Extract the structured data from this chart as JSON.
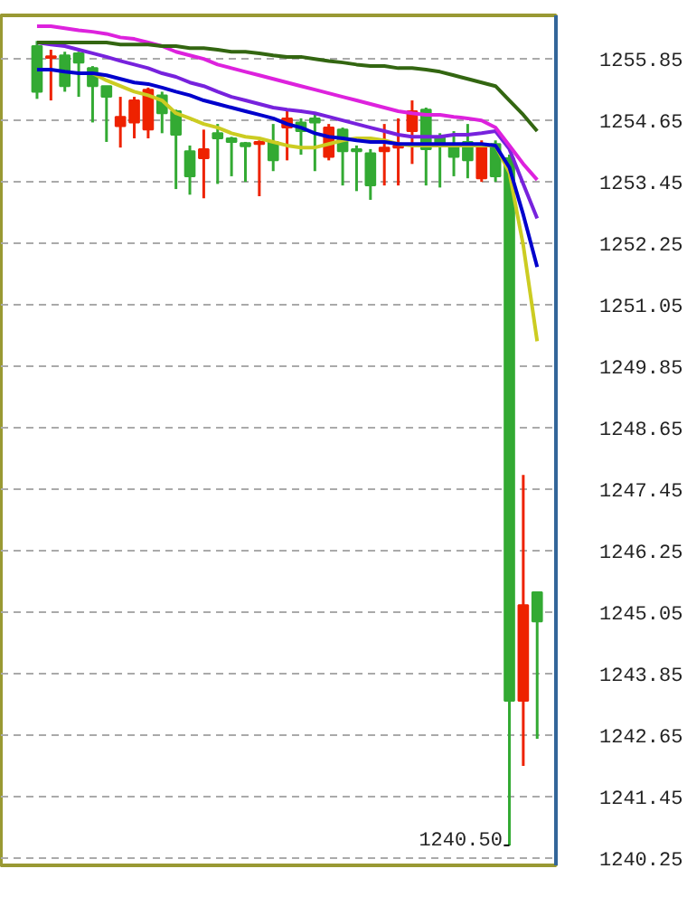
{
  "chart_data": {
    "type": "candlestick",
    "categories": [
      null,
      null,
      null,
      null,
      null,
      null,
      null,
      null,
      null,
      null,
      null,
      null,
      null,
      null,
      null,
      null,
      null,
      null,
      null,
      null,
      null,
      null,
      null,
      null,
      null,
      null,
      null,
      null,
      null,
      null,
      null,
      null,
      null,
      null,
      null,
      null,
      null
    ],
    "ohlc": [
      [
        1256.1,
        1256.2,
        1255.07,
        1255.21
      ],
      [
        1255.87,
        1256.03,
        1255.04,
        1255.9
      ],
      [
        1255.92,
        1255.99,
        1255.21,
        1255.32
      ],
      [
        1255.96,
        1255.99,
        1255.11,
        1255.78
      ],
      [
        1255.67,
        1255.71,
        1254.61,
        1255.32
      ],
      [
        1255.32,
        1255.32,
        1254.23,
        1255.11
      ],
      [
        1254.54,
        1255.11,
        1254.12,
        1254.72
      ],
      [
        1254.61,
        1255.11,
        1254.3,
        1255.04
      ],
      [
        1254.47,
        1255.29,
        1254.3,
        1255.25
      ],
      [
        1255.14,
        1255.21,
        1254.4,
        1254.79
      ],
      [
        1254.83,
        1254.86,
        1253.31,
        1254.37
      ],
      [
        1254.05,
        1254.16,
        1253.2,
        1253.56
      ],
      [
        1253.91,
        1254.47,
        1253.13,
        1254.09
      ],
      [
        1254.4,
        1254.58,
        1253.41,
        1254.3
      ],
      [
        1254.3,
        1254.33,
        1253.56,
        1254.23
      ],
      [
        1254.19,
        1254.23,
        1253.45,
        1254.16
      ],
      [
        1254.19,
        1254.26,
        1253.17,
        1254.23
      ],
      [
        1254.23,
        1254.58,
        1253.66,
        1253.87
      ],
      [
        1254.51,
        1254.83,
        1253.87,
        1254.69
      ],
      [
        1254.61,
        1254.69,
        1253.98,
        1254.44
      ],
      [
        1254.69,
        1254.79,
        1253.66,
        1254.61
      ],
      [
        1253.94,
        1254.58,
        1253.87,
        1254.51
      ],
      [
        1254.47,
        1254.51,
        1253.38,
        1254.05
      ],
      [
        1254.09,
        1254.16,
        1253.27,
        1254.05
      ],
      [
        1254.01,
        1254.09,
        1253.1,
        1253.38
      ],
      [
        1254.05,
        1254.58,
        1253.38,
        1254.12
      ],
      [
        1254.12,
        1254.69,
        1253.38,
        1254.16
      ],
      [
        1254.44,
        1255.04,
        1253.8,
        1254.83
      ],
      [
        1254.86,
        1254.9,
        1253.38,
        1254.09
      ],
      [
        1254.33,
        1254.4,
        1253.34,
        1254.19
      ],
      [
        1254.16,
        1254.44,
        1253.56,
        1253.94
      ],
      [
        1254.23,
        1254.58,
        1253.52,
        1253.87
      ],
      [
        1253.52,
        1254.26,
        1253.45,
        1254.19
      ],
      [
        1254.19,
        1254.26,
        1253.45,
        1253.56
      ],
      [
        1253.91,
        1253.98,
        1240.5,
        1243.32
      ],
      [
        1243.32,
        1247.73,
        1242.05,
        1245.19
      ],
      [
        1245.44,
        1245.44,
        1242.58,
        1244.87
      ]
    ],
    "colors": [
      "#33aa33",
      "#ee2200",
      "#33aa33",
      "#33aa33",
      "#33aa33",
      "#33aa33",
      "#ee2200",
      "#ee2200",
      "#ee2200",
      "#33aa33",
      "#33aa33",
      "#33aa33",
      "#ee2200",
      "#33aa33",
      "#33aa33",
      "#33aa33",
      "#ee2200",
      "#33aa33",
      "#ee2200",
      "#33aa33",
      "#33aa33",
      "#ee2200",
      "#33aa33",
      "#33aa33",
      "#33aa33",
      "#ee2200",
      "#ee2200",
      "#ee2200",
      "#33aa33",
      "#33aa33",
      "#33aa33",
      "#33aa33",
      "#ee2200",
      "#33aa33",
      "#33aa33",
      "#ee2200",
      "#33aa33"
    ],
    "series": [
      {
        "type": "line",
        "color": "#cccc22",
        "values": [
          null,
          null,
          null,
          null,
          1255.57,
          1255.43,
          1255.32,
          1255.21,
          1255.14,
          1255.04,
          1254.79,
          1254.69,
          1254.58,
          1254.51,
          1254.4,
          1254.33,
          1254.3,
          1254.23,
          1254.16,
          1254.12,
          1254.12,
          1254.19,
          1254.26,
          1254.3,
          1254.3,
          1254.26,
          1254.19,
          1254.16,
          1254.16,
          1254.16,
          1254.16,
          1254.16,
          1254.16,
          1254.16,
          1253.63,
          1252.21,
          1250.34
        ]
      },
      {
        "type": "line",
        "color": "#0000cc",
        "values": [
          1255.64,
          1255.64,
          1255.6,
          1255.57,
          1255.57,
          1255.53,
          1255.46,
          1255.39,
          1255.36,
          1255.29,
          1255.21,
          1255.14,
          1255.04,
          1254.97,
          1254.9,
          1254.83,
          1254.76,
          1254.69,
          1254.58,
          1254.51,
          1254.4,
          1254.33,
          1254.3,
          1254.26,
          1254.23,
          1254.23,
          1254.19,
          1254.19,
          1254.19,
          1254.19,
          1254.19,
          1254.19,
          1254.19,
          1254.16,
          1253.73,
          1252.81,
          1251.79
        ]
      },
      {
        "type": "line",
        "color": "#7722dd",
        "values": [
          1256.17,
          1256.13,
          1256.1,
          1256.03,
          1255.96,
          1255.89,
          1255.81,
          1255.74,
          1255.67,
          1255.57,
          1255.5,
          1255.39,
          1255.32,
          1255.21,
          1255.11,
          1255.04,
          1254.97,
          1254.9,
          1254.86,
          1254.83,
          1254.79,
          1254.72,
          1254.65,
          1254.58,
          1254.51,
          1254.44,
          1254.37,
          1254.33,
          1254.33,
          1254.33,
          1254.37,
          1254.37,
          1254.4,
          1254.44,
          1254.09,
          1253.41,
          1252.74
        ]
      },
      {
        "type": "line",
        "color": "#dd22dd",
        "values": [
          1256.49,
          1256.49,
          1256.45,
          1256.41,
          1256.38,
          1256.34,
          1256.27,
          1256.24,
          1256.17,
          1256.1,
          1255.99,
          1255.92,
          1255.85,
          1255.74,
          1255.67,
          1255.6,
          1255.53,
          1255.46,
          1255.39,
          1255.32,
          1255.25,
          1255.18,
          1255.11,
          1255.04,
          1254.97,
          1254.9,
          1254.83,
          1254.79,
          1254.76,
          1254.76,
          1254.72,
          1254.69,
          1254.65,
          1254.51,
          1254.16,
          1253.8,
          1253.49
        ]
      },
      {
        "type": "line",
        "color": "#336611",
        "values": [
          1256.17,
          1256.17,
          1256.17,
          1256.17,
          1256.17,
          1256.17,
          1256.13,
          1256.13,
          1256.13,
          1256.1,
          1256.1,
          1256.06,
          1256.06,
          1256.03,
          1255.99,
          1255.99,
          1255.96,
          1255.92,
          1255.89,
          1255.89,
          1255.85,
          1255.81,
          1255.78,
          1255.74,
          1255.71,
          1255.71,
          1255.67,
          1255.67,
          1255.64,
          1255.6,
          1255.53,
          1255.46,
          1255.39,
          1255.32,
          1255.04,
          1254.76,
          1254.44
        ]
      }
    ],
    "annotations": [
      "1240.50"
    ],
    "ylim": [
      1240.11,
      1256.7
    ],
    "yticks": [
      1240.25,
      1241.45,
      1242.65,
      1243.85,
      1245.05,
      1246.25,
      1247.45,
      1248.65,
      1249.85,
      1251.05,
      1252.25,
      1253.45,
      1254.65,
      1255.85
    ],
    "grid": "y",
    "line_style": "solid",
    "marker": "none"
  }
}
